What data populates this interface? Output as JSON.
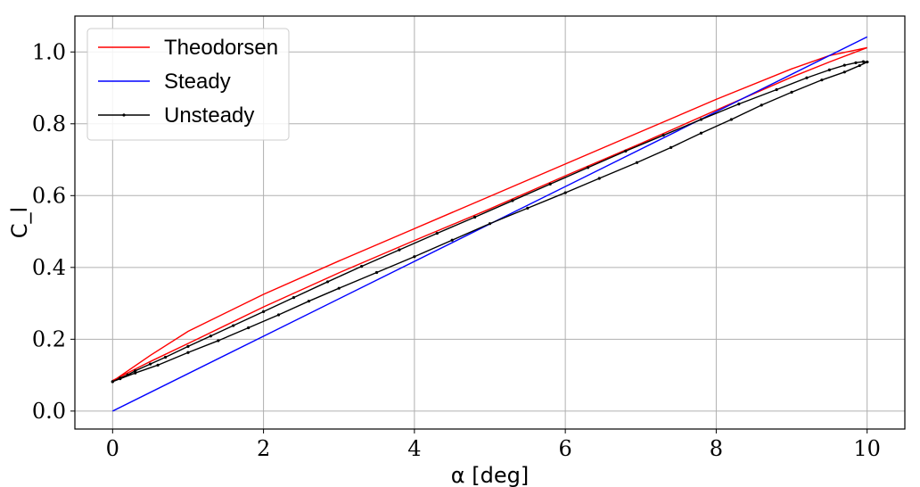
{
  "chart_data": {
    "type": "line",
    "title": "",
    "xlabel": "α [deg]",
    "ylabel": "C_l",
    "xlim": [
      -0.5,
      10.5
    ],
    "ylim": [
      -0.05,
      1.1
    ],
    "xticks": [
      0,
      2,
      4,
      6,
      8,
      10
    ],
    "yticks": [
      0.0,
      0.2,
      0.4,
      0.6,
      0.8,
      1.0
    ],
    "xtick_labels": [
      "0",
      "2",
      "4",
      "6",
      "8",
      "10"
    ],
    "ytick_labels": [
      "0.0",
      "0.2",
      "0.4",
      "0.6",
      "0.8",
      "1.0"
    ],
    "grid": true,
    "legend_position": "top-left",
    "series": [
      {
        "name": "Theodorsen",
        "color": "#ff0000",
        "marker": false,
        "x": [
          0.0,
          0.5,
          1.0,
          2.0,
          3.0,
          4.0,
          5.0,
          6.0,
          7.0,
          8.0,
          9.0,
          9.5,
          10.0,
          9.5,
          9.0,
          8.0,
          7.0,
          6.0,
          5.0,
          4.0,
          3.0,
          2.0,
          1.0,
          0.5,
          0.0
        ],
        "y": [
          0.085,
          0.138,
          0.188,
          0.29,
          0.385,
          0.475,
          0.563,
          0.655,
          0.745,
          0.838,
          0.93,
          0.972,
          1.012,
          0.99,
          0.953,
          0.868,
          0.778,
          0.688,
          0.598,
          0.508,
          0.418,
          0.325,
          0.222,
          0.155,
          0.083
        ]
      },
      {
        "name": "Steady",
        "color": "#0000ff",
        "marker": false,
        "x": [
          0.0,
          10.0
        ],
        "y": [
          0.0,
          1.042
        ]
      },
      {
        "name": "Unsteady",
        "color": "#000000",
        "marker": true,
        "x": [
          0.0,
          0.1,
          0.2,
          0.3,
          0.5,
          0.7,
          1.0,
          1.3,
          1.6,
          2.0,
          2.4,
          2.85,
          3.3,
          3.8,
          4.3,
          4.8,
          5.3,
          5.8,
          6.3,
          6.8,
          7.3,
          7.8,
          8.3,
          8.8,
          9.2,
          9.5,
          9.7,
          9.85,
          9.95,
          10.0,
          9.9,
          9.7,
          9.4,
          9.0,
          8.6,
          8.2,
          7.8,
          7.4,
          6.95,
          6.45,
          6.0,
          5.5,
          5.0,
          4.5,
          4.0,
          3.5,
          3.0,
          2.6,
          2.2,
          1.8,
          1.4,
          1.0,
          0.6,
          0.3,
          0.1,
          0.0
        ],
        "y": [
          0.082,
          0.092,
          0.101,
          0.112,
          0.131,
          0.15,
          0.18,
          0.209,
          0.238,
          0.277,
          0.316,
          0.36,
          0.403,
          0.449,
          0.495,
          0.54,
          0.586,
          0.632,
          0.678,
          0.724,
          0.768,
          0.812,
          0.855,
          0.895,
          0.928,
          0.95,
          0.963,
          0.97,
          0.973,
          0.972,
          0.962,
          0.944,
          0.922,
          0.888,
          0.852,
          0.812,
          0.774,
          0.734,
          0.692,
          0.648,
          0.608,
          0.565,
          0.522,
          0.476,
          0.43,
          0.386,
          0.342,
          0.306,
          0.268,
          0.232,
          0.196,
          0.163,
          0.128,
          0.106,
          0.09,
          0.082
        ]
      }
    ]
  }
}
